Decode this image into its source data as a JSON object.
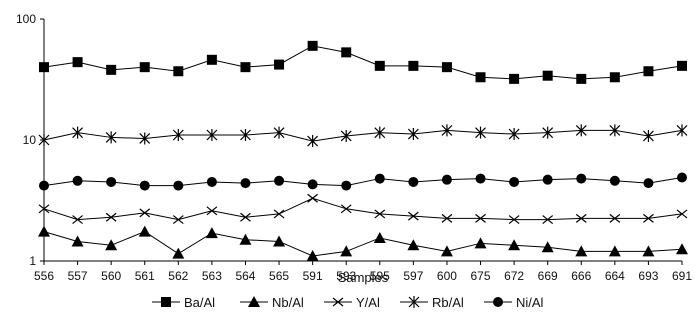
{
  "chart_data": {
    "type": "line",
    "title": "",
    "xlabel": "Samples",
    "ylabel": "",
    "y_scale": "log",
    "ylim": [
      1,
      100
    ],
    "y_ticks": [
      "1",
      "10",
      "100"
    ],
    "grid": false,
    "legend_position": "bottom",
    "categories": [
      "556",
      "557",
      "560",
      "561",
      "562",
      "563",
      "564",
      "565",
      "591",
      "593",
      "595",
      "597",
      "600",
      "675",
      "672",
      "669",
      "666",
      "664",
      "693",
      "691"
    ],
    "series": [
      {
        "name": "Ba/Al",
        "marker": "square",
        "values": [
          40,
          44,
          38,
          40,
          37,
          46,
          40,
          42,
          60,
          53,
          41,
          41,
          40,
          33,
          32,
          34,
          32,
          33,
          37,
          41
        ]
      },
      {
        "name": "Nb/Al",
        "marker": "triangle",
        "values": [
          1.75,
          1.45,
          1.35,
          1.75,
          1.15,
          1.7,
          1.5,
          1.45,
          1.1,
          1.2,
          1.55,
          1.35,
          1.2,
          1.4,
          1.35,
          1.3,
          1.2,
          1.2,
          1.2,
          1.25
        ]
      },
      {
        "name": "Y/Al",
        "marker": "x",
        "values": [
          2.7,
          2.2,
          2.3,
          2.5,
          2.2,
          2.6,
          2.3,
          2.45,
          3.3,
          2.7,
          2.45,
          2.35,
          2.25,
          2.25,
          2.2,
          2.2,
          2.25,
          2.25,
          2.25,
          2.45
        ]
      },
      {
        "name": "Rb/Al",
        "marker": "asterisk",
        "values": [
          10,
          11.5,
          10.5,
          10.3,
          11,
          11,
          11,
          11.5,
          9.8,
          10.8,
          11.5,
          11.2,
          12,
          11.5,
          11.2,
          11.5,
          12,
          12,
          10.8,
          12
        ]
      },
      {
        "name": "Ni/Al",
        "marker": "circle",
        "values": [
          4.2,
          4.6,
          4.5,
          4.2,
          4.2,
          4.5,
          4.4,
          4.6,
          4.3,
          4.2,
          4.8,
          4.5,
          4.7,
          4.8,
          4.5,
          4.7,
          4.8,
          4.6,
          4.4,
          4.9
        ]
      }
    ]
  }
}
